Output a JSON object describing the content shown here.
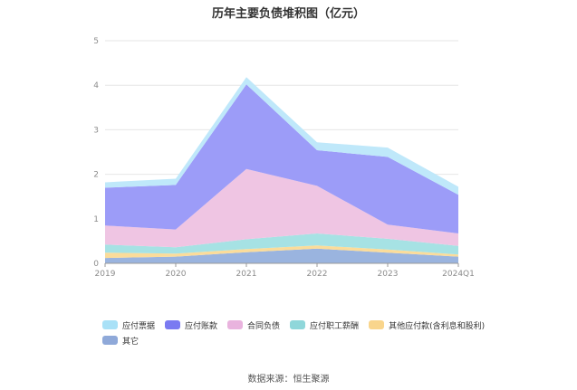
{
  "title": "历年主要负债堆积图（亿元）",
  "source": "数据来源：恒生聚源",
  "chart_data": {
    "type": "area",
    "stacked": true,
    "categories": [
      "2019",
      "2020",
      "2021",
      "2022",
      "2023",
      "2024Q1"
    ],
    "y_ticks": [
      "0",
      "1",
      "2",
      "3",
      "4",
      "5"
    ],
    "ylim": [
      0,
      5
    ],
    "grid": true,
    "legend_position": "bottom",
    "series": [
      {
        "name": "其它",
        "color": "#9ab4df",
        "values": [
          0.12,
          0.15,
          0.25,
          0.33,
          0.24,
          0.15
        ]
      },
      {
        "name": "其他应付款(含利息和股利)",
        "color": "#fbdc9a",
        "values": [
          0.12,
          0.07,
          0.07,
          0.07,
          0.07,
          0.05
        ]
      },
      {
        "name": "应付职工薪酬",
        "color": "#a6e2e4",
        "values": [
          0.18,
          0.14,
          0.22,
          0.27,
          0.24,
          0.19
        ]
      },
      {
        "name": "合同负债",
        "color": "#efc5e3",
        "values": [
          0.43,
          0.4,
          1.58,
          1.07,
          0.32,
          0.28
        ]
      },
      {
        "name": "应付账款",
        "color": "#9c9cf8",
        "values": [
          0.85,
          1.0,
          1.9,
          0.8,
          1.52,
          0.87
        ]
      },
      {
        "name": "应付票据",
        "color": "#bfe8fa",
        "values": [
          0.12,
          0.14,
          0.16,
          0.18,
          0.21,
          0.18
        ]
      }
    ],
    "legend_order": [
      "应付票据",
      "应付账款",
      "合同负债",
      "应付职工薪酬",
      "其他应付款(含利息和股利)",
      "其它"
    ],
    "legend_colors": {
      "应付票据": "#a9e1f7",
      "应付账款": "#7a7af1",
      "合同负债": "#e9b3de",
      "应付职工薪酬": "#8fd7da",
      "其他应付款(含利息和股利)": "#f9d58c",
      "其它": "#8fa9d9"
    }
  }
}
